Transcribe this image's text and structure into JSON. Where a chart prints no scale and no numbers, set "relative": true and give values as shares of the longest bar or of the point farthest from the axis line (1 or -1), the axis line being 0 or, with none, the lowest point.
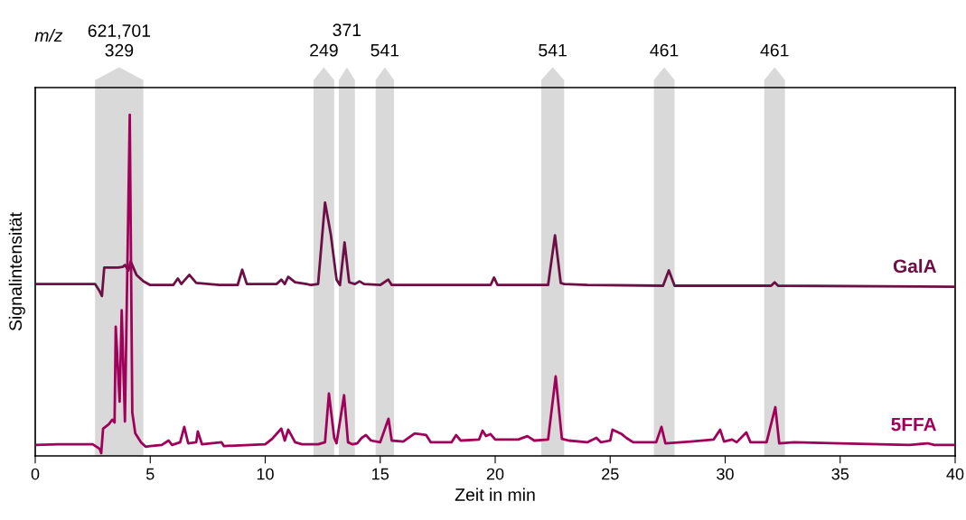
{
  "chart_data": {
    "type": "line",
    "relative": true,
    "xlabel": "Zeit in min",
    "ylabel": "Signalintensität",
    "xlim": [
      0,
      40
    ],
    "xticks": [
      0,
      5,
      10,
      15,
      20,
      25,
      30,
      35,
      40
    ],
    "tick_labels": "x",
    "grid": false,
    "legend": false,
    "annotations": [
      "m/z"
    ],
    "bands": [
      {
        "axis": "x",
        "from": 2.6,
        "to": 4.7,
        "label": "621,701\n329",
        "color": "#d9d9d9"
      },
      {
        "axis": "x",
        "from": 12.1,
        "to": 13.0,
        "label": "249",
        "color": "#d9d9d9"
      },
      {
        "axis": "x",
        "from": 13.2,
        "to": 13.9,
        "label": "371",
        "color": "#d9d9d9"
      },
      {
        "axis": "x",
        "from": 14.8,
        "to": 15.6,
        "label": "541",
        "color": "#d9d9d9"
      },
      {
        "axis": "x",
        "from": 22.0,
        "to": 23.0,
        "label": "541",
        "color": "#d9d9d9"
      },
      {
        "axis": "x",
        "from": 26.9,
        "to": 27.8,
        "label": "461",
        "color": "#d9d9d9"
      },
      {
        "axis": "x",
        "from": 31.7,
        "to": 32.6,
        "label": "461",
        "color": "#d9d9d9"
      }
    ],
    "series": [
      {
        "name": "GalA",
        "color": "#6b0f45",
        "x": [
          0,
          2.6,
          2.8,
          2.9,
          3.0,
          3.3,
          3.6,
          3.8,
          3.9,
          4.05,
          4.15,
          4.4,
          4.7,
          5.0,
          6.0,
          6.2,
          6.35,
          6.7,
          7.0,
          8.0,
          8.8,
          9.0,
          9.2,
          10.5,
          10.7,
          10.85,
          11.0,
          11.3,
          11.8,
          12.0,
          12.3,
          12.6,
          12.85,
          13.1,
          13.25,
          13.45,
          13.65,
          13.9,
          14.1,
          14.3,
          15.0,
          15.35,
          15.5,
          19.8,
          19.95,
          20.1,
          22.3,
          22.6,
          22.85,
          23.0,
          24.0,
          27.3,
          27.55,
          27.8,
          32.0,
          32.15,
          32.3,
          40
        ],
        "values": [
          0.504,
          0.504,
          0.483,
          0.469,
          0.552,
          0.552,
          0.552,
          0.554,
          0.56,
          0.544,
          0.57,
          0.531,
          0.512,
          0.501,
          0.501,
          0.52,
          0.504,
          0.531,
          0.507,
          0.501,
          0.501,
          0.546,
          0.504,
          0.504,
          0.517,
          0.504,
          0.525,
          0.509,
          0.504,
          0.501,
          0.504,
          0.743,
          0.65,
          0.517,
          0.501,
          0.626,
          0.509,
          0.504,
          0.512,
          0.504,
          0.501,
          0.517,
          0.501,
          0.501,
          0.523,
          0.501,
          0.501,
          0.647,
          0.507,
          0.504,
          0.501,
          0.499,
          0.544,
          0.499,
          0.499,
          0.509,
          0.499,
          0.496
        ]
      },
      {
        "name": "5FFA",
        "color": "#a0005a",
        "x": [
          0,
          1,
          2.5,
          2.8,
          2.87,
          2.95,
          3.2,
          3.35,
          3.45,
          3.5,
          3.67,
          3.76,
          3.9,
          4.11,
          4.22,
          4.35,
          4.6,
          4.8,
          5.0,
          5.5,
          5.8,
          5.95,
          6.3,
          6.48,
          6.65,
          7.0,
          7.07,
          7.25,
          8.1,
          8.2,
          10.0,
          10.3,
          10.7,
          10.85,
          11.0,
          11.3,
          11.6,
          12.3,
          12.6,
          12.77,
          13.0,
          13.1,
          13.43,
          13.6,
          13.8,
          14.0,
          14.2,
          14.38,
          14.6,
          15.0,
          15.36,
          15.5,
          16.0,
          16.5,
          17.0,
          17.2,
          18.1,
          18.3,
          18.5,
          19.3,
          19.45,
          19.6,
          19.8,
          20.0,
          21.0,
          21.4,
          21.7,
          22.3,
          22.63,
          22.9,
          23.2,
          24.0,
          24.4,
          24.6,
          25.0,
          25.1,
          25.5,
          25.7,
          26.0,
          27.0,
          27.23,
          27.4,
          28.5,
          29.5,
          29.78,
          29.95,
          30.3,
          30.5,
          30.92,
          31.1,
          31.8,
          32.18,
          32.35,
          33,
          35,
          38,
          38.8,
          39.1,
          40
        ],
        "values": [
          0.032,
          0.034,
          0.034,
          0.021,
          0.008,
          0.08,
          0.093,
          0.106,
          0.098,
          0.379,
          0.159,
          0.427,
          0.101,
          1.0,
          0.127,
          0.066,
          0.04,
          0.027,
          0.029,
          0.032,
          0.045,
          0.032,
          0.04,
          0.085,
          0.037,
          0.04,
          0.072,
          0.034,
          0.04,
          0.029,
          0.034,
          0.05,
          0.08,
          0.045,
          0.077,
          0.04,
          0.034,
          0.034,
          0.04,
          0.183,
          0.053,
          0.037,
          0.178,
          0.04,
          0.034,
          0.037,
          0.053,
          0.061,
          0.045,
          0.04,
          0.109,
          0.045,
          0.042,
          0.066,
          0.061,
          0.04,
          0.04,
          0.061,
          0.045,
          0.048,
          0.074,
          0.058,
          0.064,
          0.048,
          0.048,
          0.058,
          0.045,
          0.048,
          0.233,
          0.05,
          0.045,
          0.04,
          0.053,
          0.04,
          0.045,
          0.077,
          0.064,
          0.053,
          0.04,
          0.04,
          0.085,
          0.037,
          0.042,
          0.048,
          0.077,
          0.042,
          0.048,
          0.04,
          0.069,
          0.04,
          0.04,
          0.143,
          0.037,
          0.04,
          0.037,
          0.032,
          0.037,
          0.032,
          0.032
        ]
      }
    ]
  }
}
